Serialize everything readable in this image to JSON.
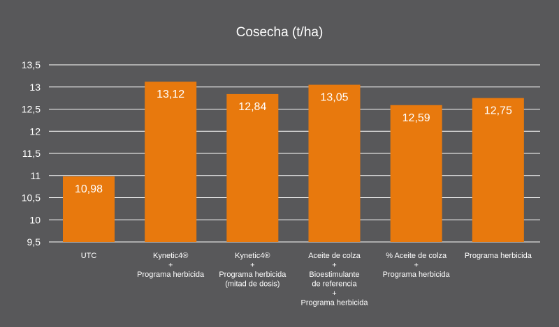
{
  "chart_data": {
    "type": "bar",
    "title": "Cosecha (t/ha)",
    "xlabel": "",
    "ylabel": "",
    "ylim": [
      9.5,
      13.5
    ],
    "yticks": [
      "9,5",
      "10",
      "10,5",
      "11",
      "11,5",
      "12",
      "12,5",
      "13",
      "13,5"
    ],
    "grid": true,
    "bar_color": "#e8790d",
    "background_color": "#58585a",
    "categories": [
      [
        "UTC"
      ],
      [
        "Kynetic4®",
        "+",
        "Programa herbicida"
      ],
      [
        "Kynetic4®",
        "+",
        "Programa herbicida",
        "(mitad de dosis)"
      ],
      [
        "Aceite de colza",
        "+",
        "Bioestimulante",
        "de referencia",
        "+",
        "Programa herbicida"
      ],
      [
        "% Aceite de colza",
        "+",
        "Programa herbicida"
      ],
      [
        "Programa herbicida"
      ]
    ],
    "values": [
      10.98,
      13.12,
      12.84,
      13.05,
      12.59,
      12.75
    ],
    "value_labels": [
      "10,98",
      "13,12",
      "12,84",
      "13,05",
      "12,59",
      "12,75"
    ]
  }
}
